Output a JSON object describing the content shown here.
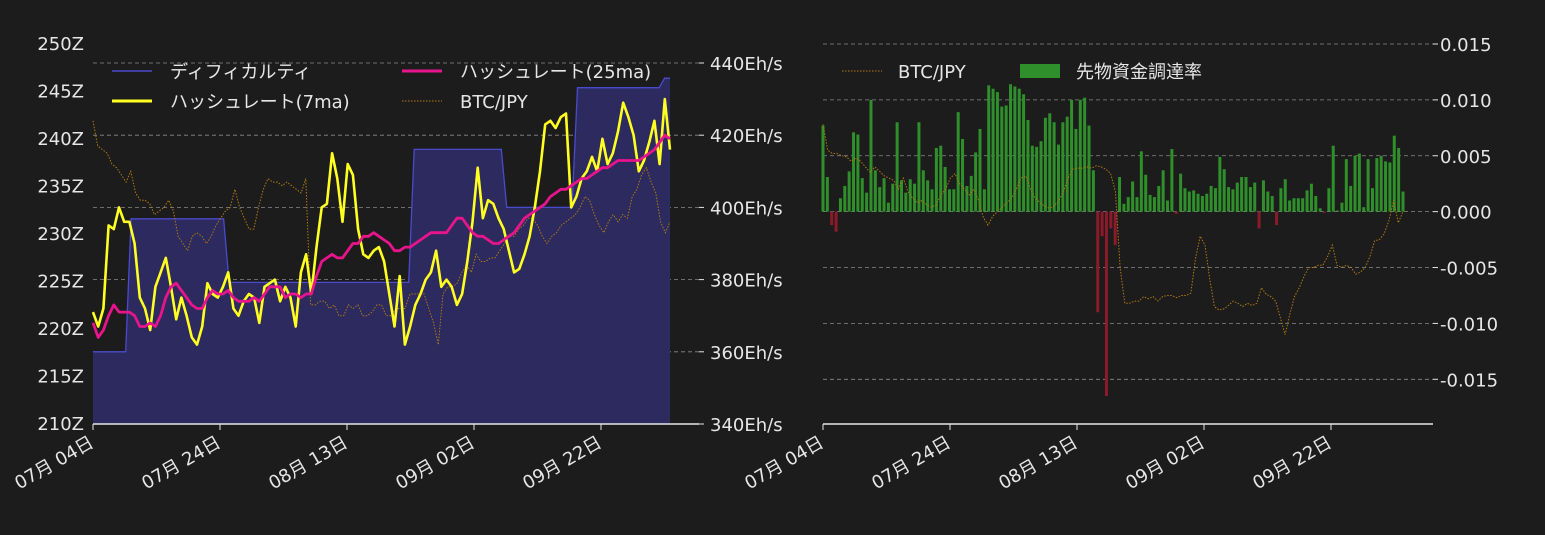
{
  "chart_data": [
    {
      "type": "line",
      "x_ticks": [
        "07月 04日",
        "07月 24日",
        "08月 13日",
        "09月 02日",
        "09月 22日"
      ],
      "left_axis": {
        "ylim": [
          210,
          250
        ],
        "ticks": [
          "210Z",
          "215Z",
          "220Z",
          "225Z",
          "230Z",
          "235Z",
          "240Z",
          "245Z",
          "250Z"
        ]
      },
      "right_axis": {
        "ylim": [
          340,
          440
        ],
        "ticks": [
          "340Eh/s",
          "360Eh/s",
          "380Eh/s",
          "400Eh/s",
          "420Eh/s",
          "440Eh/s"
        ]
      },
      "grid": "y-dashed",
      "legend": [
        {
          "label": "ディフィカルティ",
          "color": "#4a4acc",
          "style": "line"
        },
        {
          "label": "ハッシュレート(25ma)",
          "color": "#e8148c",
          "style": "line"
        },
        {
          "label": "ハッシュレート(7ma)",
          "color": "#ffff22",
          "style": "line"
        },
        {
          "label": "BTC/JPY",
          "color": "#b07a10",
          "style": "dotted"
        }
      ],
      "series": [
        {
          "name": "ディフィカルティ",
          "axis": "left",
          "color": "#4a4acc",
          "fill": "#2c2a5e",
          "values": [
            217.6,
            217.6,
            217.6,
            217.6,
            217.6,
            217.6,
            217.6,
            231.6,
            231.6,
            231.6,
            231.6,
            231.6,
            231.6,
            231.6,
            231.6,
            231.6,
            231.6,
            231.6,
            231.6,
            231.6,
            231.6,
            231.6,
            231.6,
            231.6,
            231.6,
            224.9,
            224.9,
            224.9,
            224.9,
            224.9,
            224.9,
            224.9,
            224.9,
            224.9,
            224.9,
            224.9,
            224.9,
            224.9,
            224.9,
            224.9,
            224.9,
            224.9,
            224.9,
            224.9,
            224.9,
            224.9,
            224.9,
            224.9,
            224.9,
            224.9,
            224.9,
            224.9,
            224.9,
            224.9,
            224.9,
            224.9,
            224.9,
            224.9,
            224.9,
            238.9,
            238.9,
            238.9,
            238.9,
            238.9,
            238.9,
            238.9,
            238.9,
            238.9,
            238.9,
            238.9,
            238.9,
            238.9,
            238.9,
            238.9,
            238.9,
            238.9,
            232.8,
            232.8,
            232.8,
            232.8,
            232.8,
            232.8,
            232.8,
            232.8,
            232.8,
            232.8,
            232.8,
            232.8,
            232.8,
            245.4,
            245.4,
            245.4,
            245.4,
            245.4,
            245.4,
            245.4,
            245.4,
            245.4,
            245.4,
            245.4,
            245.4,
            245.4,
            245.4,
            245.4,
            245.4,
            246.4,
            246.4
          ]
        },
        {
          "name": "ハッシュレート(7ma)",
          "axis": "right",
          "color": "#ffff22",
          "values": [
            371,
            367,
            372,
            395,
            394,
            400,
            396,
            396,
            390,
            375,
            372,
            366,
            378,
            382,
            386,
            378,
            369,
            375,
            370,
            364,
            362,
            367,
            379,
            376,
            375,
            378,
            382,
            372,
            370,
            374,
            376,
            375,
            368,
            378,
            379,
            380,
            374,
            378,
            375,
            367,
            382,
            387,
            376,
            389,
            400,
            401,
            415,
            408,
            396,
            412,
            409,
            394,
            387,
            386,
            388,
            389,
            385,
            376,
            367,
            381,
            362,
            367,
            373,
            376,
            380,
            382,
            388,
            378,
            380,
            378,
            373,
            376,
            385,
            396,
            411,
            397,
            402,
            401,
            397,
            394,
            388,
            382,
            383,
            387,
            392,
            400,
            410,
            423,
            424,
            422,
            425,
            426,
            400,
            403,
            408,
            410,
            414,
            410,
            419,
            412,
            415,
            421,
            429,
            425,
            420,
            410,
            413,
            418,
            424,
            412,
            430,
            416
          ]
        },
        {
          "name": "ハッシュレート(25ma)",
          "axis": "right",
          "color": "#e8148c",
          "values": [
            368,
            364,
            366,
            370,
            373,
            371,
            371,
            371,
            370,
            367,
            367,
            368,
            367,
            370,
            375,
            378,
            379,
            377,
            375,
            373,
            372,
            372,
            375,
            377,
            376,
            376,
            377,
            375,
            374,
            374,
            374,
            375,
            374,
            376,
            378,
            378,
            378,
            375,
            376,
            376,
            375,
            376,
            376,
            381,
            385,
            386,
            387,
            386,
            386,
            388,
            390,
            390,
            392,
            392,
            393,
            392,
            391,
            390,
            388,
            388,
            389,
            389,
            390,
            391,
            392,
            393,
            393,
            393,
            393,
            395,
            397,
            397,
            395,
            393,
            392,
            392,
            391,
            390,
            390,
            391,
            392,
            393,
            395,
            397,
            398,
            399,
            400,
            401,
            403,
            404,
            405,
            405,
            406,
            407,
            408,
            408,
            409,
            410,
            411,
            411,
            412,
            413,
            413,
            413,
            413,
            413,
            414,
            415,
            416,
            418,
            420,
            419
          ]
        },
        {
          "name": "BTC/JPY",
          "axis": "right",
          "color": "#b07a10",
          "values": [
            424,
            417,
            416,
            415,
            412,
            411,
            409,
            407,
            410,
            404,
            402,
            402,
            401,
            398,
            399,
            400,
            402,
            399,
            392,
            390,
            388,
            392,
            393,
            392,
            390,
            392,
            395,
            397,
            399,
            400,
            405,
            400,
            397,
            394,
            394,
            400,
            405,
            408,
            407,
            407,
            406,
            407,
            406,
            405,
            404,
            408,
            373,
            373,
            374,
            374,
            372,
            373,
            370,
            370,
            373,
            372,
            373,
            370,
            370,
            371,
            373,
            373,
            370,
            370,
            372,
            372,
            372,
            376,
            376,
            376,
            376,
            372,
            368,
            362,
            376,
            378,
            378,
            379,
            382,
            384,
            382,
            387,
            385,
            385,
            386,
            386,
            388,
            390,
            392,
            392,
            394,
            395,
            397,
            397,
            395,
            392,
            390,
            392,
            393,
            395,
            396,
            397,
            398,
            400,
            403,
            402,
            398,
            395,
            393,
            396,
            398,
            396,
            398,
            397,
            403,
            405,
            409,
            411,
            407,
            404,
            396,
            393,
            396
          ]
        }
      ]
    },
    {
      "type": "bar",
      "x_ticks": [
        "07月 04日",
        "07月 24日",
        "08月 13日",
        "09月 02日",
        "09月 22日"
      ],
      "ylim": [
        -0.019,
        0.015
      ],
      "y_ticks": [
        "0.015",
        "0.010",
        "0.005",
        "0.000",
        "-0.005",
        "-0.010",
        "-0.015"
      ],
      "grid": "y-dashed",
      "legend": [
        {
          "label": "BTC/JPY",
          "color": "#b07a10",
          "style": "dotted"
        },
        {
          "label": "先物資金調達率",
          "color": "#2f8f2a",
          "style": "patch"
        }
      ],
      "series": [
        {
          "name": "先物資金調達率",
          "type": "bar",
          "color_positive": "#2f8f2a",
          "color_negative": "#8b1a2a",
          "values": [
            0.0077,
            0.0031,
            -0.0012,
            -0.0018,
            0.0012,
            0.0023,
            0.0036,
            0.0071,
            0.0069,
            0.003,
            0.0017,
            0.01,
            0.0037,
            0.0022,
            0.003,
            0.0008,
            0.0025,
            0.008,
            0.0028,
            0.0017,
            0.0029,
            0.0025,
            0.008,
            0.0037,
            0.0028,
            0.002,
            0.0057,
            0.0059,
            0.004,
            0.002,
            0.002,
            0.0089,
            0.0065,
            0.0023,
            0.0032,
            0.0053,
            0.0074,
            0.002,
            0.0113,
            0.011,
            0.0107,
            0.0094,
            0.0095,
            0.0114,
            0.0112,
            0.011,
            0.0105,
            0.0082,
            0.0059,
            0.0058,
            0.0063,
            0.0084,
            0.0088,
            0.008,
            0.006,
            0.008,
            0.0085,
            0.01,
            0.0074,
            0.01,
            0.0102,
            0.0077,
            0.0037,
            -0.009,
            -0.0022,
            -0.0165,
            -0.0015,
            -0.003,
            0.0031,
            0.0007,
            0.0013,
            0.0027,
            0.0013,
            0.0054,
            0.0033,
            0.0015,
            0.0013,
            0.0023,
            0.0037,
            0.001,
            0.0056,
            -0.0002,
            0.0034,
            0.0021,
            0.0018,
            0.0019,
            0.0016,
            0.0014,
            0.0016,
            0.0023,
            0.0021,
            0.0049,
            0.0038,
            0.0022,
            0.002,
            0.0026,
            0.0031,
            0.0031,
            0.0022,
            0.0026,
            -0.0015,
            0.0028,
            0.0018,
            0.0014,
            -0.0012,
            0.0021,
            0.0029,
            0.001,
            0.0012,
            0.0012,
            0.0012,
            0.0019,
            0.0025,
            0.0014,
            0.0003,
            -0.0001,
            0.0021,
            0.0059,
            0.0001,
            0.0008,
            0.0047,
            0.0023,
            0.005,
            0.0052,
            0.0004,
            0.0047,
            0.0021,
            0.0048,
            0.005,
            0.0045,
            0.0044,
            0.0068,
            0.0057,
            0.0018
          ]
        },
        {
          "name": "BTC/JPY",
          "type": "line",
          "color": "#b07a10",
          "values": [
            0.0078,
            0.0055,
            0.0052,
            0.0052,
            0.005,
            0.0049,
            0.0045,
            0.0048,
            0.0045,
            0.004,
            0.0035,
            0.004,
            0.0036,
            0.0032,
            0.003,
            0.0028,
            0.002,
            0.003,
            0.0018,
            0.0012,
            0.0008,
            0.001,
            0.0006,
            0.0004,
            0.0006,
            0.0015,
            0.002,
            0.003,
            0.0034,
            0.0025,
            0.002,
            0.0015,
            0.002,
            0.001,
            -0.0005,
            -0.0012,
            -0.0004,
            0.0,
            0.0004,
            0.0008,
            0.0012,
            0.002,
            0.003,
            0.0032,
            0.002,
            0.0012,
            0.0008,
            0.0005,
            0.0003,
            0.0005,
            0.001,
            0.0018,
            0.003,
            0.0038,
            0.0039,
            0.0039,
            0.004,
            0.0039,
            0.0041,
            0.004,
            0.0038,
            0.0034,
            0.0018,
            -0.005,
            -0.0082,
            -0.0082,
            -0.008,
            -0.008,
            -0.0076,
            -0.0078,
            -0.0076,
            -0.008,
            -0.0076,
            -0.0075,
            -0.0075,
            -0.0077,
            -0.0075,
            -0.0075,
            -0.0073,
            -0.0042,
            -0.0022,
            -0.003,
            -0.006,
            -0.0085,
            -0.0088,
            -0.0087,
            -0.0084,
            -0.008,
            -0.0082,
            -0.0085,
            -0.0082,
            -0.0084,
            -0.0082,
            -0.0068,
            -0.0074,
            -0.0076,
            -0.008,
            -0.0095,
            -0.011,
            -0.0092,
            -0.0076,
            -0.0068,
            -0.0058,
            -0.005,
            -0.005,
            -0.0048,
            -0.0048,
            -0.004,
            -0.003,
            -0.0048,
            -0.005,
            -0.0048,
            -0.005,
            -0.0056,
            -0.0054,
            -0.005,
            -0.004,
            -0.0026,
            -0.0025,
            -0.002,
            -0.0008,
            0.001,
            -0.001,
            0.0
          ]
        }
      ]
    }
  ]
}
